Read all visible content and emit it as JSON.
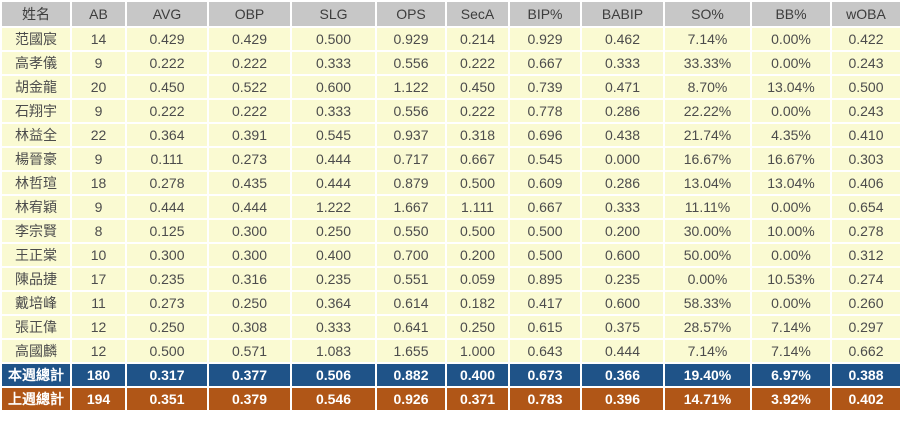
{
  "chart_data": {
    "type": "table",
    "title": "",
    "columns": [
      "姓名",
      "AB",
      "AVG",
      "OBP",
      "SLG",
      "OPS",
      "SecA",
      "BIP%",
      "BABIP",
      "SO%",
      "BB%",
      "wOBA"
    ],
    "rows": [
      [
        "范國宸",
        "14",
        "0.429",
        "0.429",
        "0.500",
        "0.929",
        "0.214",
        "0.929",
        "0.462",
        "7.14%",
        "0.00%",
        "0.422"
      ],
      [
        "高孝儀",
        "9",
        "0.222",
        "0.222",
        "0.333",
        "0.556",
        "0.222",
        "0.667",
        "0.333",
        "33.33%",
        "0.00%",
        "0.243"
      ],
      [
        "胡金龍",
        "20",
        "0.450",
        "0.522",
        "0.600",
        "1.122",
        "0.450",
        "0.739",
        "0.471",
        "8.70%",
        "13.04%",
        "0.500"
      ],
      [
        "石翔宇",
        "9",
        "0.222",
        "0.222",
        "0.333",
        "0.556",
        "0.222",
        "0.778",
        "0.286",
        "22.22%",
        "0.00%",
        "0.243"
      ],
      [
        "林益全",
        "22",
        "0.364",
        "0.391",
        "0.545",
        "0.937",
        "0.318",
        "0.696",
        "0.438",
        "21.74%",
        "4.35%",
        "0.410"
      ],
      [
        "楊晉豪",
        "9",
        "0.111",
        "0.273",
        "0.444",
        "0.717",
        "0.667",
        "0.545",
        "0.000",
        "16.67%",
        "16.67%",
        "0.303"
      ],
      [
        "林哲瑄",
        "18",
        "0.278",
        "0.435",
        "0.444",
        "0.879",
        "0.500",
        "0.609",
        "0.286",
        "13.04%",
        "13.04%",
        "0.406"
      ],
      [
        "林宥穎",
        "9",
        "0.444",
        "0.444",
        "1.222",
        "1.667",
        "1.111",
        "0.667",
        "0.333",
        "11.11%",
        "0.00%",
        "0.654"
      ],
      [
        "李宗賢",
        "8",
        "0.125",
        "0.300",
        "0.250",
        "0.550",
        "0.500",
        "0.500",
        "0.200",
        "30.00%",
        "10.00%",
        "0.278"
      ],
      [
        "王正棠",
        "10",
        "0.300",
        "0.300",
        "0.400",
        "0.700",
        "0.200",
        "0.500",
        "0.600",
        "50.00%",
        "0.00%",
        "0.312"
      ],
      [
        "陳品捷",
        "17",
        "0.235",
        "0.316",
        "0.235",
        "0.551",
        "0.059",
        "0.895",
        "0.235",
        "0.00%",
        "10.53%",
        "0.274"
      ],
      [
        "戴培峰",
        "11",
        "0.273",
        "0.250",
        "0.364",
        "0.614",
        "0.182",
        "0.417",
        "0.600",
        "58.33%",
        "0.00%",
        "0.260"
      ],
      [
        "張正偉",
        "12",
        "0.250",
        "0.308",
        "0.333",
        "0.641",
        "0.250",
        "0.615",
        "0.375",
        "28.57%",
        "7.14%",
        "0.297"
      ],
      [
        "高國麟",
        "12",
        "0.500",
        "0.571",
        "1.083",
        "1.655",
        "1.000",
        "0.643",
        "0.444",
        "7.14%",
        "7.14%",
        "0.662"
      ]
    ],
    "summary_rows": [
      {
        "label": "本週總計",
        "type": "this_week",
        "values": [
          "180",
          "0.317",
          "0.377",
          "0.506",
          "0.882",
          "0.400",
          "0.673",
          "0.366",
          "19.40%",
          "6.97%",
          "0.388"
        ]
      },
      {
        "label": "上週總計",
        "type": "last_week",
        "values": [
          "194",
          "0.351",
          "0.379",
          "0.546",
          "0.926",
          "0.371",
          "0.783",
          "0.396",
          "14.71%",
          "3.92%",
          "0.402"
        ]
      }
    ]
  },
  "colors": {
    "header_bg": "#c7c7c7",
    "row_bg": "#fafad2",
    "this_week_bg": "#1f5388",
    "last_week_bg": "#b05617",
    "summary_text": "#ffffff",
    "body_text": "#4c4c4c",
    "header_text": "#3d3d3d",
    "grid": "#ffffff"
  }
}
